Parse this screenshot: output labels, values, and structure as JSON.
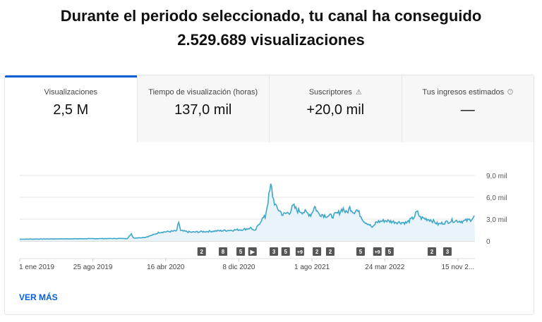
{
  "header": {
    "line1": "Durante el periodo seleccionado, tu canal ha conseguido",
    "line2": "2.529.689 visualizaciones"
  },
  "tabs": [
    {
      "label": "Visualizaciones",
      "value": "2,5 M",
      "icon": ""
    },
    {
      "label": "Tiempo de visualización (horas)",
      "value": "137,0 mil",
      "icon": ""
    },
    {
      "label": "Suscriptores",
      "value": "+20,0 mil",
      "icon": "warning-icon"
    },
    {
      "label": "Tus ingresos estimados",
      "value": "—",
      "icon": "clock-icon"
    }
  ],
  "colors": {
    "accent": "#065fd4",
    "line": "#3ea6c8",
    "fill": "#e8f4f9"
  },
  "chart_data": {
    "type": "area",
    "x_unit": "days since 1 ene 2019",
    "yticks": [
      {
        "v": 0,
        "label": "0"
      },
      {
        "v": 3,
        "label": "3,0 mil"
      },
      {
        "v": 6,
        "label": "6,0 mil"
      },
      {
        "v": 9,
        "label": "9,0 mil"
      }
    ],
    "ylim": [
      0,
      9
    ],
    "xlim": [
      0,
      1469
    ],
    "xticks": [
      {
        "d": 0,
        "label": "1 ene 2019"
      },
      {
        "d": 236,
        "label": "25 ago 2019"
      },
      {
        "d": 471,
        "label": "16 abr 2020"
      },
      {
        "d": 707,
        "label": "8 dic 2020"
      },
      {
        "d": 943,
        "label": "1 ago 2021"
      },
      {
        "d": 1178,
        "label": "24 mar 2022"
      },
      {
        "d": 1414,
        "label": "15 nov 2..."
      }
    ],
    "points": [
      [
        0,
        0.25
      ],
      [
        166,
        0.3
      ],
      [
        348,
        0.35
      ],
      [
        360,
        1.0
      ],
      [
        367,
        0.4
      ],
      [
        405,
        0.5
      ],
      [
        428,
        0.8
      ],
      [
        451,
        1.2
      ],
      [
        485,
        1.3
      ],
      [
        508,
        1.4
      ],
      [
        512,
        2.8
      ],
      [
        519,
        1.4
      ],
      [
        553,
        1.2
      ],
      [
        599,
        1.3
      ],
      [
        644,
        1.4
      ],
      [
        690,
        1.5
      ],
      [
        724,
        1.6
      ],
      [
        747,
        1.8
      ],
      [
        758,
        1.3
      ],
      [
        781,
        3.0
      ],
      [
        792,
        3.3
      ],
      [
        799,
        5.0
      ],
      [
        811,
        7.7
      ],
      [
        817,
        6.0
      ],
      [
        827,
        4.6
      ],
      [
        838,
        4.2
      ],
      [
        849,
        3.6
      ],
      [
        872,
        4.0
      ],
      [
        883,
        4.8
      ],
      [
        895,
        4.2
      ],
      [
        918,
        4.0
      ],
      [
        940,
        3.6
      ],
      [
        952,
        4.8
      ],
      [
        963,
        3.8
      ],
      [
        986,
        3.5
      ],
      [
        1009,
        3.4
      ],
      [
        1031,
        3.9
      ],
      [
        1043,
        4.5
      ],
      [
        1054,
        3.8
      ],
      [
        1066,
        4.6
      ],
      [
        1077,
        4.0
      ],
      [
        1088,
        4.3
      ],
      [
        1100,
        3.5
      ],
      [
        1111,
        2.7
      ],
      [
        1127,
        2.3
      ],
      [
        1139,
        1.8
      ],
      [
        1150,
        2.6
      ],
      [
        1179,
        2.8
      ],
      [
        1214,
        2.6
      ],
      [
        1248,
        2.5
      ],
      [
        1271,
        3.2
      ],
      [
        1282,
        4.0
      ],
      [
        1293,
        3.2
      ],
      [
        1327,
        2.9
      ],
      [
        1350,
        2.3
      ],
      [
        1396,
        2.8
      ],
      [
        1430,
        2.7
      ],
      [
        1453,
        2.9
      ],
      [
        1469,
        3.4
      ]
    ],
    "annotations": [
      {
        "d": 587,
        "label": "2"
      },
      {
        "d": 656,
        "label": "8"
      },
      {
        "d": 713,
        "label": "5"
      },
      {
        "d": 751,
        "label": "▶"
      },
      {
        "d": 820,
        "label": "3"
      },
      {
        "d": 858,
        "label": "5"
      },
      {
        "d": 904,
        "label": "+9"
      },
      {
        "d": 959,
        "label": "2"
      },
      {
        "d": 1002,
        "label": "2"
      },
      {
        "d": 1100,
        "label": "5"
      },
      {
        "d": 1154,
        "label": "+9"
      },
      {
        "d": 1193,
        "label": "5"
      },
      {
        "d": 1330,
        "label": "2"
      },
      {
        "d": 1380,
        "label": "3"
      }
    ]
  },
  "more_label": "VER MÁS"
}
